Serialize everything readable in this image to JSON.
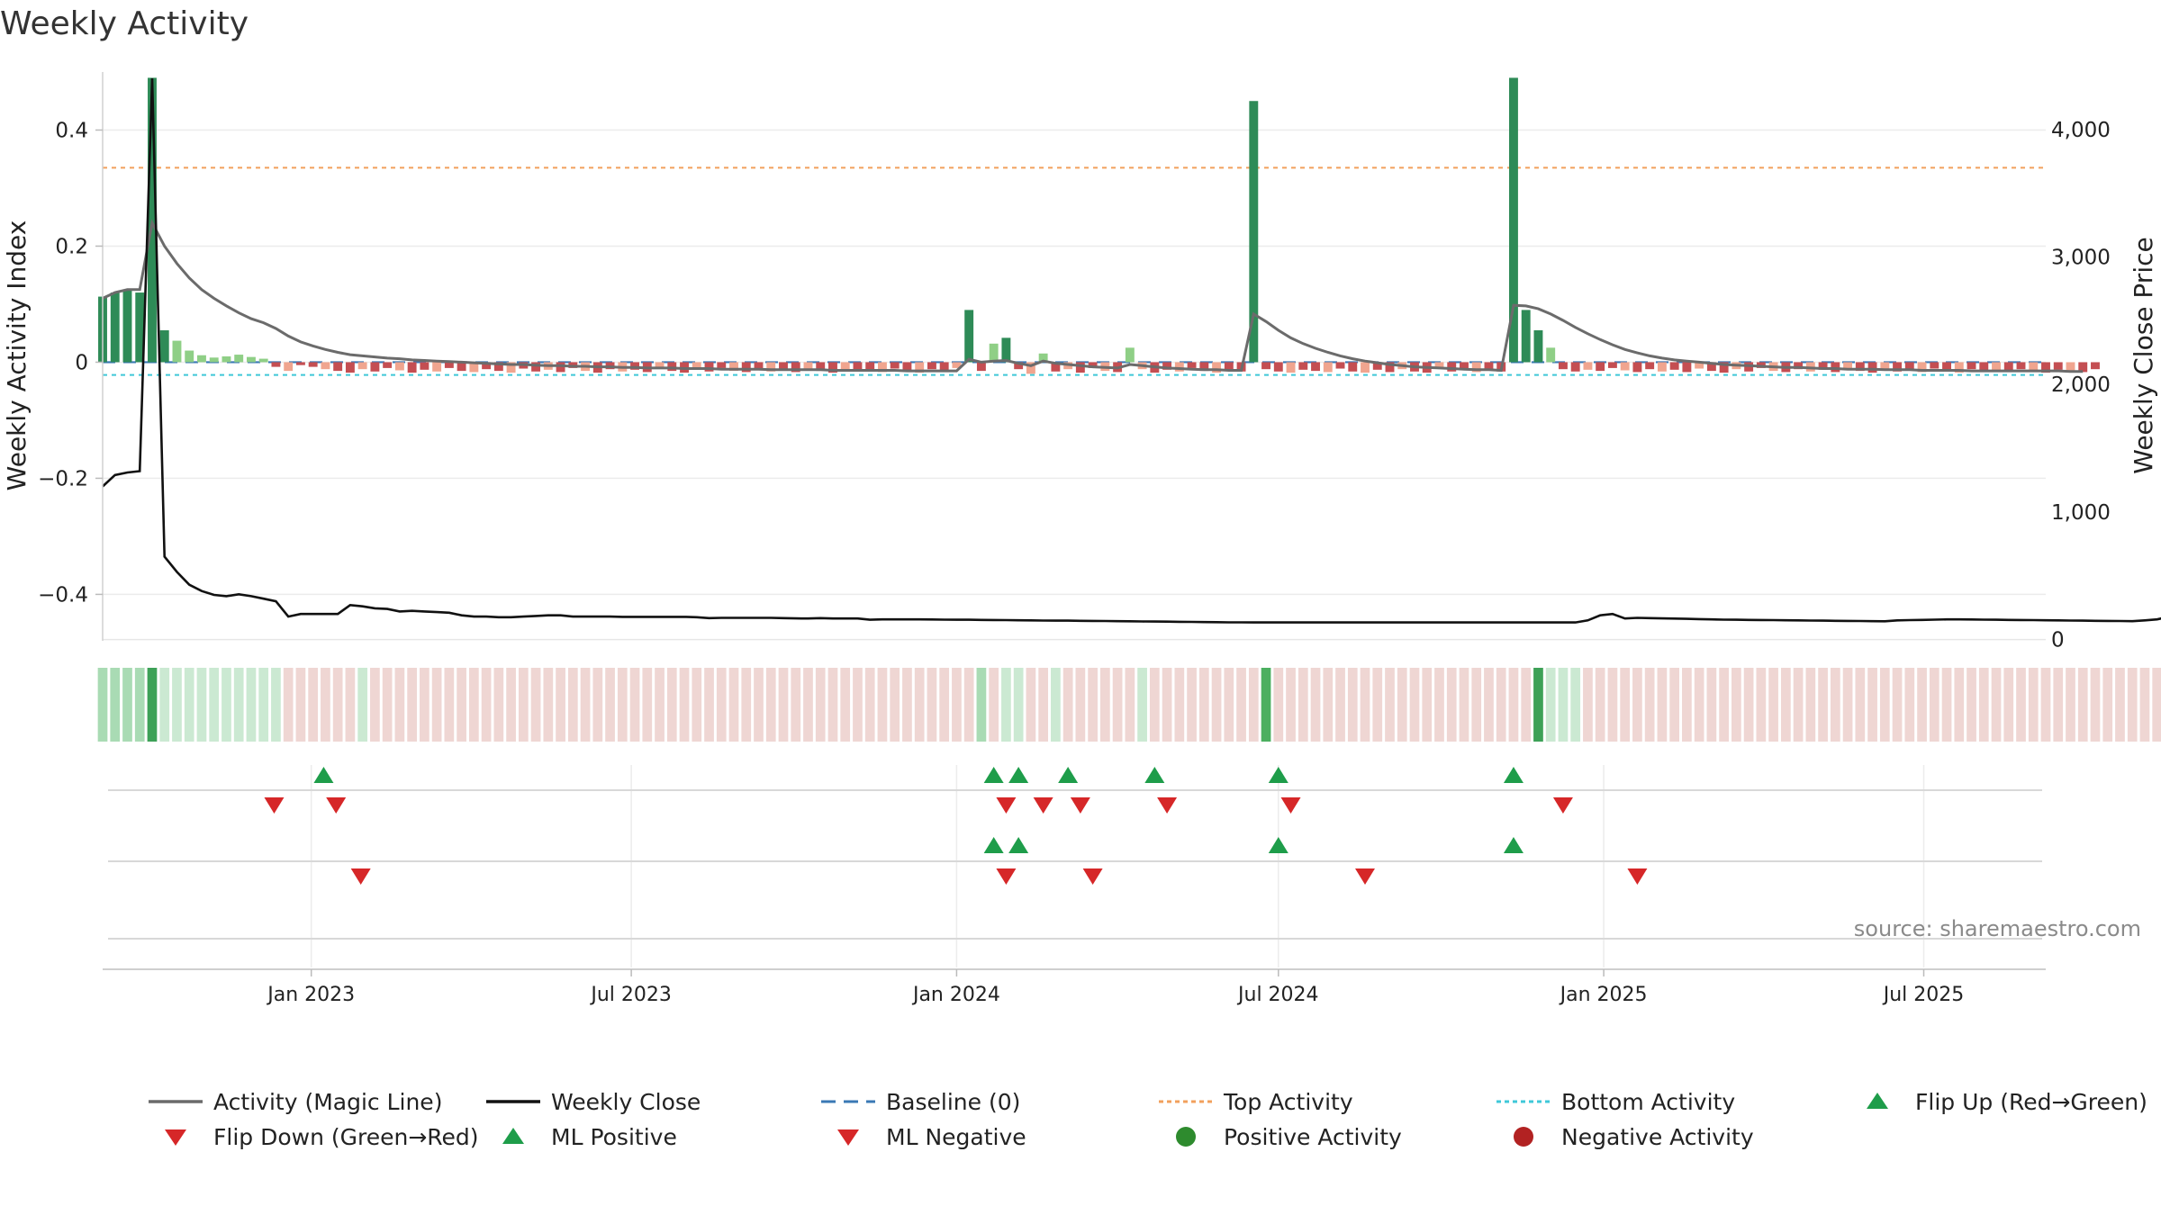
{
  "chart_data": {
    "type": "bar",
    "title": "Weekly Activity",
    "source": "source: sharemaestro.com",
    "ylabel_left": "Weekly Activity Index",
    "ylabel_right": "Weekly Close Price",
    "x_range": [
      "2022-09-05",
      "2025-09-08"
    ],
    "x_ticks": [
      {
        "date": "2023-01-01",
        "label": "Jan 2023"
      },
      {
        "date": "2023-07-01",
        "label": "Jul 2023"
      },
      {
        "date": "2024-01-01",
        "label": "Jan 2024"
      },
      {
        "date": "2024-07-01",
        "label": "Jul 2024"
      },
      {
        "date": "2025-01-01",
        "label": "Jan 2025"
      },
      {
        "date": "2025-07-01",
        "label": "Jul 2025"
      }
    ],
    "y_left": {
      "min": -0.48,
      "max": 0.5,
      "ticks": [
        -0.4,
        -0.2,
        0,
        0.2,
        0.4
      ],
      "tick_labels": [
        "−0.4",
        "−0.2",
        "0",
        "0.2",
        "0.4"
      ]
    },
    "y_right": {
      "min": -10,
      "max": 4450,
      "ticks": [
        0,
        1000,
        2000,
        3000,
        4000
      ],
      "tick_labels": [
        "0",
        "1,000",
        "2,000",
        "3,000",
        "4,000"
      ]
    },
    "start_date": "2022-09-05",
    "reference_lines": {
      "top_activity": 0.335,
      "bottom_activity": -0.022,
      "baseline": 0
    },
    "activity_bars": [
      0.113,
      0.12,
      0.125,
      0.12,
      0.49,
      0.055,
      0.037,
      0.02,
      0.012,
      0.008,
      0.01,
      0.013,
      0.009,
      0.006,
      -0.008,
      -0.015,
      -0.005,
      -0.008,
      -0.012,
      -0.015,
      -0.018,
      -0.012,
      -0.016,
      -0.01,
      -0.014,
      -0.018,
      -0.013,
      -0.016,
      -0.01,
      -0.015,
      -0.017,
      -0.012,
      -0.015,
      -0.018,
      -0.011,
      -0.016,
      -0.013,
      -0.017,
      -0.01,
      -0.015,
      -0.018,
      -0.012,
      -0.016,
      -0.013,
      -0.017,
      -0.011,
      -0.015,
      -0.018,
      -0.012,
      -0.016,
      -0.01,
      -0.015,
      -0.017,
      -0.012,
      -0.016,
      -0.013,
      -0.017,
      -0.011,
      -0.015,
      -0.018,
      -0.012,
      -0.016,
      -0.013,
      -0.017,
      -0.011,
      -0.015,
      -0.018,
      -0.012,
      -0.016,
      -0.01,
      0.09,
      -0.015,
      0.032,
      0.042,
      -0.012,
      -0.02,
      0.015,
      -0.016,
      -0.012,
      -0.018,
      -0.01,
      -0.015,
      -0.017,
      0.025,
      -0.012,
      -0.018,
      -0.013,
      -0.016,
      -0.01,
      -0.015,
      -0.018,
      -0.012,
      -0.016,
      0.45,
      -0.012,
      -0.016,
      -0.018,
      -0.013,
      -0.015,
      -0.017,
      -0.011,
      -0.016,
      -0.018,
      -0.013,
      -0.017,
      -0.012,
      -0.016,
      -0.018,
      -0.011,
      -0.016,
      -0.014,
      -0.017,
      -0.012,
      -0.016,
      0.49,
      0.09,
      0.055,
      0.025,
      -0.012,
      -0.016,
      -0.013,
      -0.015,
      -0.01,
      -0.014,
      -0.017,
      -0.012,
      -0.016,
      -0.013,
      -0.017,
      -0.011,
      -0.015,
      -0.018,
      -0.012,
      -0.016,
      -0.01,
      -0.015,
      -0.017,
      -0.012,
      -0.016,
      -0.013,
      -0.017,
      -0.011,
      -0.015,
      -0.018,
      -0.012,
      -0.016,
      -0.013,
      -0.017,
      -0.011,
      -0.015,
      -0.018,
      -0.012,
      -0.016,
      -0.014,
      -0.017,
      -0.012,
      -0.016,
      -0.018,
      -0.013,
      -0.015,
      -0.017,
      -0.012
    ],
    "magic_line": [
      0.11,
      0.12,
      0.125,
      0.125,
      0.24,
      0.2,
      0.17,
      0.145,
      0.125,
      0.11,
      0.097,
      0.085,
      0.075,
      0.068,
      0.058,
      0.045,
      0.035,
      0.028,
      0.022,
      0.017,
      0.013,
      0.011,
      0.009,
      0.007,
      0.006,
      0.004,
      0.003,
      0.002,
      0.001,
      0,
      -0.001,
      -0.002,
      -0.003,
      -0.004,
      -0.004,
      -0.005,
      -0.006,
      -0.006,
      -0.007,
      -0.007,
      -0.008,
      -0.008,
      -0.009,
      -0.009,
      -0.01,
      -0.01,
      -0.01,
      -0.011,
      -0.011,
      -0.011,
      -0.012,
      -0.012,
      -0.012,
      -0.012,
      -0.013,
      -0.013,
      -0.013,
      -0.013,
      -0.013,
      -0.014,
      -0.014,
      -0.014,
      -0.014,
      -0.014,
      -0.014,
      -0.015,
      -0.015,
      -0.015,
      -0.015,
      -0.015,
      0.005,
      0,
      0.002,
      0.003,
      -0.002,
      -0.006,
      0.002,
      -0.002,
      -0.004,
      -0.006,
      -0.008,
      -0.009,
      -0.01,
      -0.004,
      -0.006,
      -0.008,
      -0.01,
      -0.011,
      -0.012,
      -0.013,
      -0.013,
      -0.014,
      -0.014,
      0.083,
      0.07,
      0.055,
      0.042,
      0.032,
      0.024,
      0.017,
      0.011,
      0.006,
      0.002,
      -0.001,
      -0.004,
      -0.006,
      -0.008,
      -0.009,
      -0.01,
      -0.011,
      -0.012,
      -0.013,
      -0.013,
      -0.014,
      0.098,
      0.097,
      0.092,
      0.083,
      0.072,
      0.06,
      0.049,
      0.039,
      0.03,
      0.022,
      0.016,
      0.011,
      0.007,
      0.004,
      0.002,
      0,
      -0.002,
      -0.004,
      -0.005,
      -0.006,
      -0.007,
      -0.008,
      -0.009,
      -0.009,
      -0.01,
      -0.011,
      -0.011,
      -0.012,
      -0.012,
      -0.012,
      -0.013,
      -0.013,
      -0.013,
      -0.014,
      -0.014,
      -0.014,
      -0.014,
      -0.015,
      -0.015,
      -0.015,
      -0.015,
      -0.015,
      -0.015,
      -0.015,
      -0.015,
      -0.016,
      -0.016
    ],
    "weekly_close": [
      1200,
      1290,
      1310,
      1320,
      4400,
      650,
      530,
      430,
      380,
      350,
      340,
      355,
      340,
      320,
      300,
      180,
      200,
      200,
      200,
      200,
      270,
      260,
      245,
      240,
      220,
      225,
      220,
      215,
      210,
      190,
      180,
      180,
      175,
      175,
      180,
      185,
      190,
      190,
      180,
      180,
      180,
      180,
      178,
      178,
      178,
      178,
      178,
      178,
      175,
      168,
      170,
      170,
      170,
      170,
      170,
      168,
      166,
      165,
      168,
      165,
      165,
      165,
      155,
      158,
      158,
      158,
      158,
      157,
      156,
      155,
      155,
      154,
      153,
      152,
      151,
      150,
      149,
      148,
      148,
      147,
      146,
      145,
      144,
      143,
      142,
      141,
      140,
      139,
      138,
      137,
      136,
      135,
      135,
      134,
      134,
      134,
      134,
      134,
      134,
      134,
      134,
      134,
      134,
      134,
      134,
      134,
      134,
      134,
      134,
      134,
      134,
      134,
      134,
      134,
      134,
      134,
      134,
      134,
      134,
      134,
      150,
      190,
      200,
      165,
      170,
      168,
      166,
      164,
      162,
      160,
      158,
      156,
      155,
      154,
      153,
      152,
      151,
      150,
      149,
      148,
      147,
      146,
      145,
      144,
      143,
      150,
      152,
      154,
      156,
      158,
      158,
      157,
      156,
      155,
      154,
      153,
      152,
      151,
      150,
      149,
      148,
      147,
      146,
      145,
      144,
      150,
      158,
      180,
      170,
      172
    ],
    "regime_strip": [
      "pos2",
      "pos2",
      "pos2",
      "pos2",
      "pos4",
      "pos1",
      "pos1",
      "pos1",
      "pos1",
      "pos1",
      "pos1",
      "pos1",
      "pos1",
      "pos1",
      "pos1",
      "neg",
      "neg",
      "neg",
      "neg",
      "neg",
      "neg",
      "pos1",
      "neg",
      "neg",
      "neg",
      "neg",
      "neg",
      "neg",
      "neg",
      "neg",
      "neg",
      "neg",
      "neg",
      "neg",
      "neg",
      "neg",
      "neg",
      "neg",
      "neg",
      "neg",
      "neg",
      "neg",
      "neg",
      "neg",
      "neg",
      "neg",
      "neg",
      "neg",
      "neg",
      "neg",
      "neg",
      "neg",
      "neg",
      "neg",
      "neg",
      "neg",
      "neg",
      "neg",
      "neg",
      "neg",
      "neg",
      "neg",
      "neg",
      "neg",
      "neg",
      "neg",
      "neg",
      "neg",
      "neg",
      "neg",
      "neg",
      "pos2",
      "neg",
      "pos1",
      "pos1",
      "neg",
      "neg",
      "pos1",
      "neg",
      "neg",
      "neg",
      "neg",
      "neg",
      "neg",
      "pos1",
      "neg",
      "neg",
      "neg",
      "neg",
      "neg",
      "neg",
      "neg",
      "neg",
      "neg",
      "pos3",
      "neg",
      "neg",
      "neg",
      "neg",
      "neg",
      "neg",
      "neg",
      "neg",
      "neg",
      "neg",
      "neg",
      "neg",
      "neg",
      "neg",
      "neg",
      "neg",
      "neg",
      "neg",
      "neg",
      "neg",
      "neg",
      "pos4",
      "pos1",
      "pos1",
      "pos1",
      "neg",
      "neg",
      "neg",
      "neg",
      "neg",
      "neg",
      "neg",
      "neg",
      "neg",
      "neg",
      "neg",
      "neg",
      "neg",
      "neg",
      "neg",
      "neg",
      "neg",
      "neg",
      "neg",
      "neg",
      "neg",
      "neg",
      "neg",
      "neg",
      "neg",
      "neg",
      "neg",
      "neg",
      "neg",
      "neg",
      "neg",
      "neg",
      "neg",
      "neg",
      "neg",
      "neg",
      "neg",
      "neg",
      "neg",
      "neg",
      "neg",
      "neg",
      "neg",
      "neg",
      "neg",
      "neg",
      "neg",
      "neg"
    ],
    "flip_up": [
      "2023-01-08",
      "2024-01-22",
      "2024-02-05",
      "2024-03-04",
      "2024-04-22",
      "2024-07-01",
      "2024-11-11"
    ],
    "flip_down": [
      "2022-12-11",
      "2023-01-15",
      "2024-01-29",
      "2024-02-19",
      "2024-03-11",
      "2024-04-29",
      "2024-07-08",
      "2024-12-09"
    ],
    "ml_positive": [
      "2024-01-22",
      "2024-02-05",
      "2024-07-01",
      "2024-11-11"
    ],
    "ml_negative": [
      "2023-01-29",
      "2024-01-29",
      "2024-03-18",
      "2024-08-19",
      "2025-01-20"
    ],
    "legend": [
      {
        "label": "Activity (Magic Line)",
        "kind": "line",
        "color": "#6b6b6b"
      },
      {
        "label": "Weekly Close",
        "kind": "line",
        "color": "#111111"
      },
      {
        "label": "Baseline (0)",
        "kind": "dash",
        "color": "#3a78b5"
      },
      {
        "label": "Top Activity",
        "kind": "dot",
        "color": "#f2a05c"
      },
      {
        "label": "Bottom Activity",
        "kind": "dot",
        "color": "#3fc8d8"
      },
      {
        "label": "Flip Up (Red→Green)",
        "kind": "tri-up",
        "color": "#1e9d4a"
      },
      {
        "label": "Flip Down (Green→Red)",
        "kind": "tri-down",
        "color": "#d62728"
      },
      {
        "label": "ML Positive",
        "kind": "tri-up",
        "color": "#1e9d4a"
      },
      {
        "label": "ML Negative",
        "kind": "tri-down",
        "color": "#d62728"
      },
      {
        "label": "Positive Activity",
        "kind": "circle",
        "color": "#2e8b2e"
      },
      {
        "label": "Negative Activity",
        "kind": "circle",
        "color": "#b22222"
      }
    ],
    "colors": {
      "bar_pos_strong": "#2e8b57",
      "bar_pos_light": "#8fcf86",
      "bar_neg_strong": "#c44e52",
      "bar_neg_light": "#f0a58f",
      "strip_pos1": "#cbe9d2",
      "strip_pos2": "#a9dbb4",
      "strip_pos3": "#4caf60",
      "strip_pos4": "#3da157",
      "strip_neg": "#efd6d3"
    }
  }
}
